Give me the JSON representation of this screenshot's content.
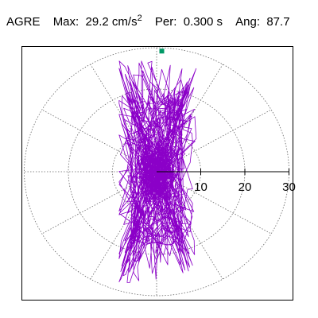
{
  "header": {
    "station": "AGRE",
    "max_label": "Max:",
    "max_value": "29.2",
    "max_unit": "cm/s",
    "max_unit_exp": "2",
    "per_label": "Per:",
    "per_value": "0.300 s",
    "ang_label": "Ang:",
    "ang_value": "87.7"
  },
  "chart_data": {
    "type": "polar-orbit",
    "radial_ticks": [
      "10",
      "20",
      "30"
    ],
    "radial_tick_values": [
      10,
      20,
      30
    ],
    "radial_max": 30,
    "grid": "dotted",
    "trace_color": "#8B00C8",
    "marker_color": "#009966",
    "marker_angle_deg": 87.7,
    "marker_radius": 29.2,
    "trace_extent": {
      "x_min": -8.5,
      "x_max": 9.5,
      "y_min": -27.0,
      "y_max": 29.2
    }
  }
}
